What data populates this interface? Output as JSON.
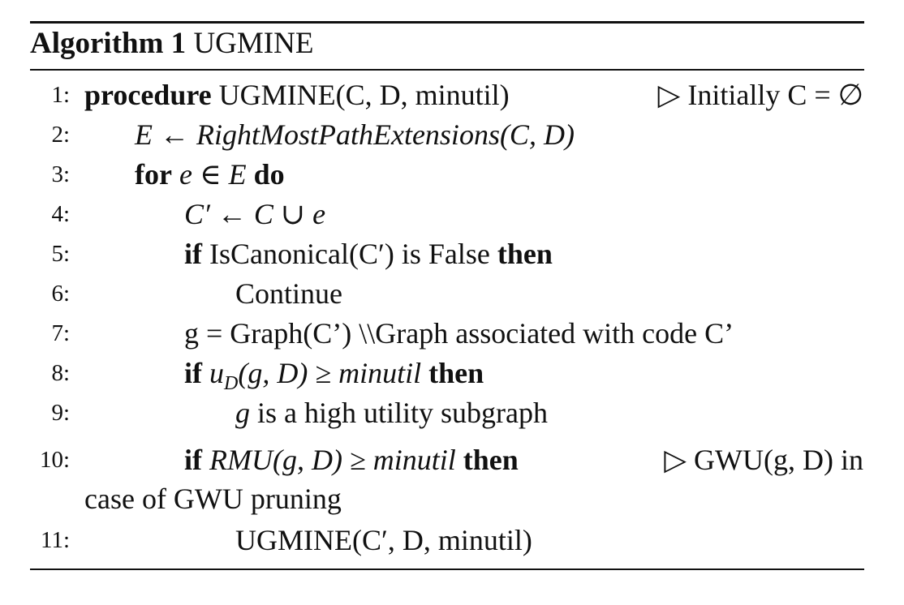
{
  "caption": {
    "label": "Algorithm 1",
    "name": "UGMINE"
  },
  "lines": [
    {
      "num": "1:",
      "kw": "procedure",
      "text": "UGMINE(C, D, minutil)",
      "comment": "▷ Initially C = ∅"
    },
    {
      "num": "2:",
      "text": "E ← RightMostPathExtensions(C, D)"
    },
    {
      "num": "3:",
      "kw": "for",
      "text": "e ∈ E",
      "kw2": "do"
    },
    {
      "num": "4:",
      "text": "C′ ← C ∪ e"
    },
    {
      "num": "5:",
      "kw": "if",
      "text": "IsCanonical(C′) is False",
      "kw2": "then"
    },
    {
      "num": "6:",
      "text": "Continue"
    },
    {
      "num": "7:",
      "text": "g = Graph(C’) \\\\Graph associated with code C’"
    },
    {
      "num": "8:",
      "kw": "if",
      "text": "u",
      "sub": "D",
      "text2": "(g, D) ≥ minutil",
      "kw2": "then"
    },
    {
      "num": "9:",
      "text": "g",
      "text2": "is a high utility subgraph"
    },
    {
      "num": "10:",
      "kw": "if",
      "text": "RMU(g, D) ≥ minutil",
      "kw2": "then",
      "comment": "▷  GWU(g, D) in",
      "cont": "case of GWU pruning"
    },
    {
      "num": "11:",
      "text": "UGMINE(C′, D, minutil)"
    }
  ]
}
